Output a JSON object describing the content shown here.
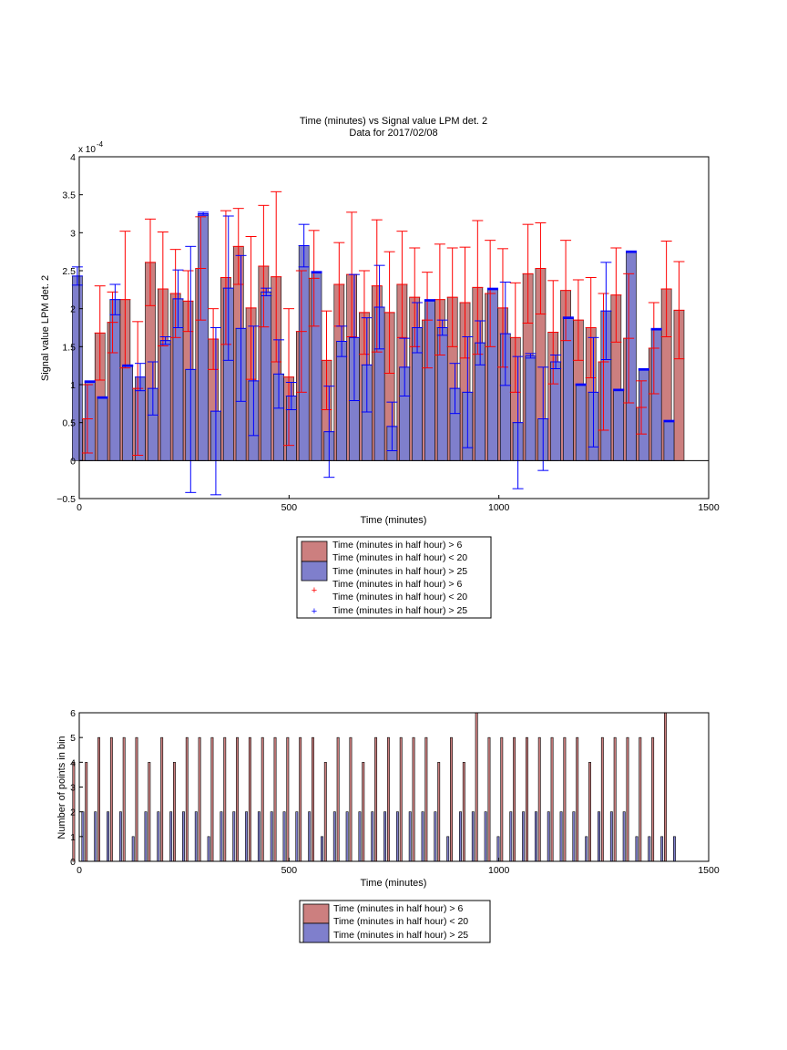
{
  "chart_data": [
    {
      "type": "bar",
      "title": "Time (minutes) vs Signal value LPM det. 2",
      "subtitle": "Data for 2017/02/08",
      "xlabel": "Time (minutes)",
      "ylabel": "Signal value LPM det. 2",
      "exponent_label": "x 10",
      "exponent_power": "-4",
      "xlim": [
        0,
        1500
      ],
      "ylim": [
        -0.5,
        4
      ],
      "xticks": [
        "0",
        "500",
        "1000",
        "1500"
      ],
      "yticks": [
        "−0.5",
        "0",
        "0.5",
        "1",
        "1.5",
        "2",
        "2.5",
        "3",
        "3.5",
        "4"
      ],
      "legend": {
        "placement": "below",
        "entries": [
          "Time (minutes in half hour) > 6",
          "Time (minutes in half hour) < 20",
          "Time (minutes in half hour) > 25",
          "Time (minutes in half hour) > 6",
          "Time (minutes in half hour) < 20",
          "Time (minutes in half hour) > 25"
        ]
      },
      "x": [
        15,
        45,
        75,
        105,
        135,
        165,
        195,
        225,
        255,
        285,
        315,
        345,
        375,
        405,
        435,
        465,
        495,
        525,
        555,
        585,
        615,
        645,
        675,
        705,
        735,
        765,
        795,
        825,
        855,
        885,
        915,
        945,
        975,
        1005,
        1035,
        1065,
        1095,
        1125,
        1155,
        1185,
        1215,
        1245,
        1275,
        1305,
        1335,
        1365,
        1395,
        1425
      ],
      "series": [
        {
          "name": "Time (minutes in half hour) > 6",
          "color": "#cc7f7f",
          "err_color": "#ff0000",
          "values": [
            0.55,
            1.68,
            1.82,
            2.12,
            0.95,
            2.61,
            2.26,
            2.2,
            2.1,
            2.53,
            1.6,
            2.41,
            2.82,
            2.01,
            2.56,
            2.42,
            1.1,
            1.7,
            2.4,
            1.32,
            2.32,
            2.45,
            1.95,
            2.3,
            1.95,
            2.32,
            2.15,
            1.85,
            2.12,
            2.15,
            2.08,
            2.28,
            2.2,
            2.01,
            1.62,
            2.46,
            2.53,
            1.69,
            2.24,
            1.85,
            1.75,
            1.3,
            2.18,
            1.61,
            0.7,
            1.48,
            2.26,
            1.98
          ],
          "err": [
            0.45,
            0.62,
            0.4,
            0.9,
            0.88,
            0.57,
            0.75,
            0.58,
            0.4,
            0.68,
            0.4,
            0.88,
            0.5,
            0.94,
            0.8,
            1.12,
            0.9,
            0.8,
            0.63,
            0.65,
            0.55,
            0.82,
            0.55,
            0.87,
            0.8,
            0.7,
            0.65,
            0.63,
            0.73,
            0.65,
            0.73,
            0.88,
            0.7,
            0.78,
            0.72,
            0.65,
            0.6,
            0.68,
            0.66,
            0.53,
            0.66,
            0.9,
            0.62,
            0.85,
            0.35,
            0.6,
            0.63,
            0.64
          ]
        },
        {
          "name": "Time (minutes in half hour) > 25",
          "color": "#7f7fcc",
          "err_color": "#0000ff",
          "values": [
            2.43,
            1.04,
            0.83,
            2.12,
            1.25,
            1.1,
            0.95,
            1.58,
            2.13,
            1.2,
            3.25,
            0.65,
            2.27,
            1.74,
            1.05,
            2.22,
            1.14,
            0.85,
            2.83,
            2.48,
            0.38,
            1.57,
            1.62,
            1.26,
            2.02,
            0.45,
            1.23,
            1.75,
            2.11,
            1.75,
            0.95,
            0.9,
            1.55,
            2.26,
            1.67,
            0.5,
            1.38,
            0.55,
            1.3,
            1.88,
            1.0,
            0.9,
            1.97,
            0.93,
            2.75,
            1.2,
            1.73,
            0.52
          ],
          "err": [
            0.12,
            0.01,
            0.01,
            0.2,
            0.01,
            0.18,
            0.35,
            0.05,
            0.38,
            1.62,
            0.02,
            1.1,
            0.95,
            0.96,
            0.72,
            0.05,
            0.45,
            0.18,
            0.28,
            0.01,
            0.6,
            0.2,
            0.83,
            0.62,
            0.55,
            0.32,
            0.38,
            0.33,
            0.01,
            0.1,
            0.33,
            0.73,
            0.29,
            0.01,
            0.68,
            0.87,
            0.03,
            0.68,
            0.09,
            0.01,
            0.01,
            0.72,
            0.64,
            0.01,
            0.01,
            0.01,
            0.01,
            0.01
          ]
        }
      ]
    },
    {
      "type": "bar",
      "xlabel": "Time (minutes)",
      "ylabel": "Number of points in bin",
      "xlim": [
        0,
        1500
      ],
      "ylim": [
        0,
        6
      ],
      "xticks": [
        "0",
        "500",
        "1000",
        "1500"
      ],
      "yticks": [
        "0",
        "1",
        "2",
        "3",
        "4",
        "5",
        "6"
      ],
      "legend": {
        "placement": "below",
        "entries": [
          "Time (minutes in half hour) > 6",
          "Time (minutes in half hour) < 20",
          "Time (minutes in half hour) > 25"
        ]
      },
      "x": [
        15,
        45,
        75,
        105,
        135,
        165,
        195,
        225,
        255,
        285,
        315,
        345,
        375,
        405,
        435,
        465,
        495,
        525,
        555,
        585,
        615,
        645,
        675,
        705,
        735,
        765,
        795,
        825,
        855,
        885,
        915,
        945,
        975,
        1005,
        1035,
        1065,
        1095,
        1125,
        1155,
        1185,
        1215,
        1245,
        1275,
        1305,
        1335,
        1365,
        1395,
        1425
      ],
      "series": [
        {
          "name": "Time (minutes in half hour) > 6",
          "color": "#cc7f7f",
          "values": [
            4,
            4,
            5,
            5,
            5,
            5,
            4,
            5,
            4,
            5,
            5,
            5,
            5,
            5,
            5,
            5,
            5,
            5,
            5,
            5,
            4,
            5,
            5,
            4,
            5,
            5,
            5,
            5,
            5,
            4,
            5,
            4,
            6,
            5,
            5,
            5,
            5,
            5,
            5,
            5,
            5,
            4,
            5,
            5,
            5,
            5,
            5,
            6
          ]
        },
        {
          "name": "Time (minutes in half hour) > 25",
          "color": "#7f7fcc",
          "values": [
            2,
            2,
            2,
            2,
            1,
            2,
            2,
            2,
            2,
            2,
            1,
            2,
            2,
            2,
            2,
            2,
            2,
            2,
            2,
            1,
            2,
            2,
            2,
            2,
            2,
            2,
            2,
            2,
            2,
            1,
            2,
            2,
            2,
            1,
            2,
            2,
            2,
            2,
            2,
            2,
            1,
            2,
            2,
            2,
            1,
            1,
            1,
            1
          ]
        }
      ]
    }
  ]
}
